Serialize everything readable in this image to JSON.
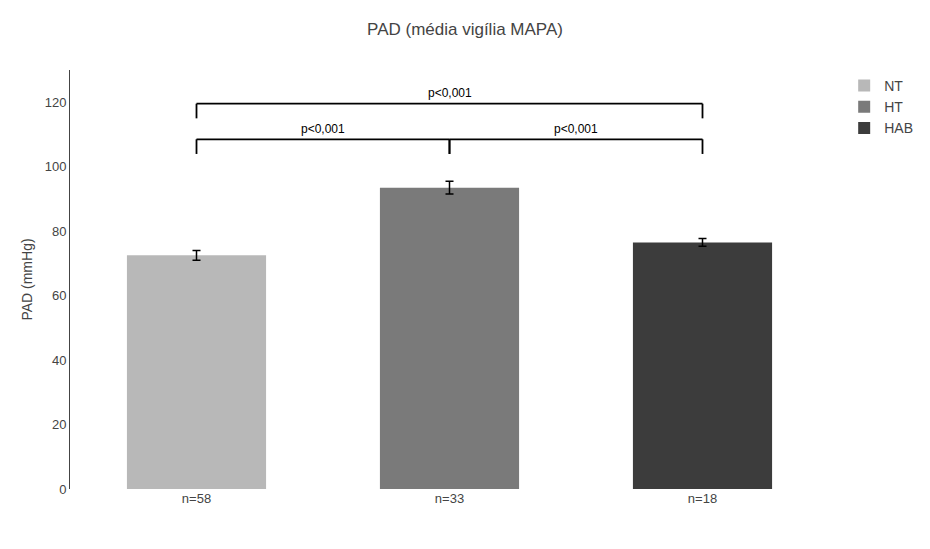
{
  "chart_data": {
    "type": "bar",
    "title": "PAD (média vigília MAPA)",
    "ylabel": "PAD (mmHg)",
    "categories": [
      "n=58",
      "n=33",
      "n=18"
    ],
    "series": [
      {
        "name": "NT",
        "color": "#b8b8b8",
        "values": [
          72.5,
          null,
          null
        ],
        "errors": [
          1.5,
          null,
          null
        ]
      },
      {
        "name": "HT",
        "color": "#7a7a7a",
        "values": [
          null,
          93.5,
          null
        ],
        "errors": [
          null,
          2.0,
          null
        ]
      },
      {
        "name": "HAB",
        "color": "#3c3c3c",
        "values": [
          null,
          null,
          76.5
        ],
        "errors": [
          null,
          null,
          1.2
        ]
      }
    ],
    "ylim": [
      0,
      130
    ],
    "yticks": [
      0,
      20,
      40,
      60,
      80,
      100,
      120
    ],
    "grid": false,
    "legend": "upper right",
    "annotations": [
      {
        "text": "p<0,001",
        "between": [
          "n=58",
          "n=33"
        ]
      },
      {
        "text": "p<0,001",
        "between": [
          "n=33",
          "n=18"
        ]
      },
      {
        "text": "p<0,001",
        "between": [
          "n=58",
          "n=18"
        ]
      }
    ]
  }
}
